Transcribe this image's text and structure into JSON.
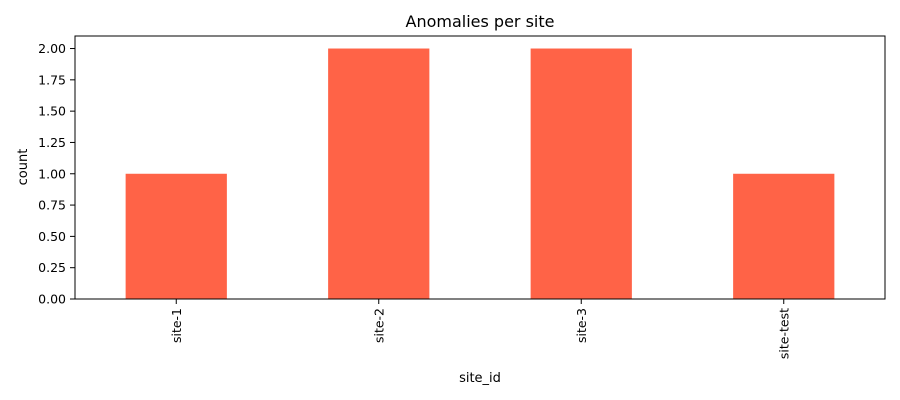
{
  "chart_data": {
    "type": "bar",
    "title": "Anomalies per site",
    "xlabel": "site_id",
    "ylabel": "count",
    "categories": [
      "site-1",
      "site-2",
      "site-3",
      "site-test"
    ],
    "values": [
      1,
      2,
      2,
      1
    ],
    "ylim": [
      0,
      2.1
    ],
    "yticks": [
      "0.00",
      "0.25",
      "0.50",
      "0.75",
      "1.00",
      "1.25",
      "1.50",
      "1.75",
      "2.00"
    ],
    "bar_color": "#ff6347",
    "grid": false,
    "legend": "none"
  }
}
